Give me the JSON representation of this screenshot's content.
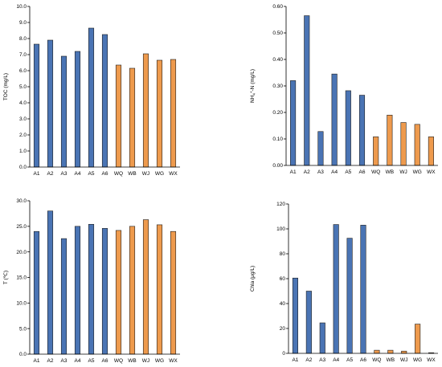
{
  "colors": {
    "group_a": "#4a74b4",
    "group_w": "#ee9a4d",
    "bar_edge": "#1f1f1f",
    "axis": "#000000"
  },
  "chart_data": [
    {
      "type": "bar",
      "categories": [
        "A1",
        "A2",
        "A3",
        "A4",
        "A5",
        "A6",
        "WQ",
        "WB",
        "WJ",
        "WG",
        "WX"
      ],
      "values": [
        7.65,
        7.9,
        6.9,
        7.2,
        8.65,
        8.25,
        6.35,
        6.15,
        7.05,
        6.65,
        6.7
      ],
      "ylabel": "TOC (mg/L)",
      "ylim": [
        0,
        10
      ],
      "yticks": [
        "0.0",
        "1.0",
        "2.0",
        "3.0",
        "4.0",
        "5.0",
        "6.0",
        "7.0",
        "8.0",
        "9.0",
        "10.0"
      ],
      "grid": false
    },
    {
      "type": "bar",
      "categories": [
        "A1",
        "A2",
        "A3",
        "A4",
        "A5",
        "A6",
        "WQ",
        "WB",
        "WJ",
        "WG",
        "WX"
      ],
      "values": [
        0.32,
        0.565,
        0.128,
        0.345,
        0.282,
        0.265,
        0.108,
        0.19,
        0.162,
        0.155,
        0.108
      ],
      "ylabel": "NH",
      "ylabel_sub": "4",
      "ylabel_sup": "+",
      "ylabel_rest": "-N (mg/L)",
      "ylim": [
        0,
        0.6
      ],
      "yticks": [
        "0.00",
        "0.10",
        "0.20",
        "0.30",
        "0.40",
        "0.50",
        "0.60"
      ],
      "grid": false
    },
    {
      "type": "bar",
      "categories": [
        "A1",
        "A2",
        "A3",
        "A4",
        "A5",
        "A6",
        "WQ",
        "WB",
        "WJ",
        "WG",
        "WX"
      ],
      "values": [
        24.0,
        28.0,
        22.6,
        25.0,
        25.4,
        24.6,
        24.2,
        25.0,
        26.3,
        25.3,
        24.0
      ],
      "ylabel": "T (℃)",
      "ylim": [
        0,
        30
      ],
      "yticks": [
        "0.0",
        "5.0",
        "10.0",
        "15.0",
        "20.0",
        "25.0",
        "30.0"
      ],
      "grid": false
    },
    {
      "type": "bar",
      "categories": [
        "A1",
        "A2",
        "A3",
        "A4",
        "A5",
        "A6",
        "WQ",
        "WB",
        "WJ",
        "WG",
        "WX"
      ],
      "values": [
        60.5,
        50.0,
        24.5,
        103.5,
        92.5,
        103.0,
        2.5,
        2.5,
        1.8,
        23.5,
        0.5
      ],
      "ylabel": "Chla  (μg/L)",
      "ylim": [
        0,
        120
      ],
      "yticks": [
        "0",
        "20",
        "40",
        "60",
        "80",
        "100",
        "120"
      ],
      "grid": false
    }
  ]
}
